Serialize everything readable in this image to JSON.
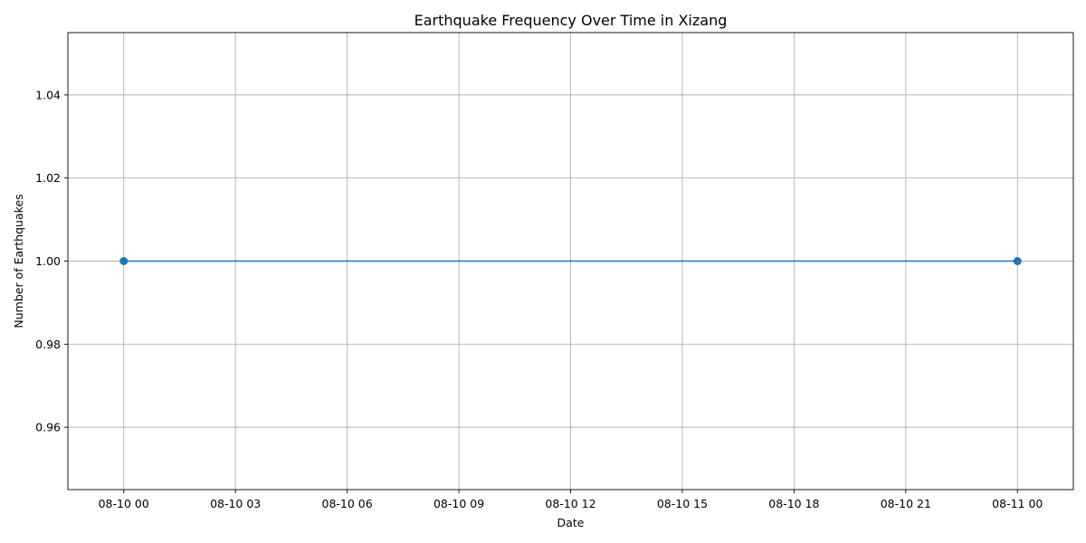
{
  "chart_data": {
    "type": "line",
    "title": "Earthquake Frequency Over Time in Xizang",
    "xlabel": "Date",
    "ylabel": "Number of Earthquakes",
    "x_ticks": [
      "08-10 00",
      "08-10 03",
      "08-10 06",
      "08-10 09",
      "08-10 12",
      "08-10 15",
      "08-10 18",
      "08-10 21",
      "08-11 00"
    ],
    "y_ticks": [
      "0.96",
      "0.98",
      "1.00",
      "1.02",
      "1.04"
    ],
    "ylim": [
      0.945,
      1.055
    ],
    "xlim": [
      "08-09 22:30",
      "08-11 01:30"
    ],
    "grid": true,
    "line_color": "#1f77b4",
    "marker": "circle",
    "series": [
      {
        "x": [
          "08-10 00",
          "08-11 00"
        ],
        "values": [
          1,
          1
        ]
      }
    ]
  }
}
